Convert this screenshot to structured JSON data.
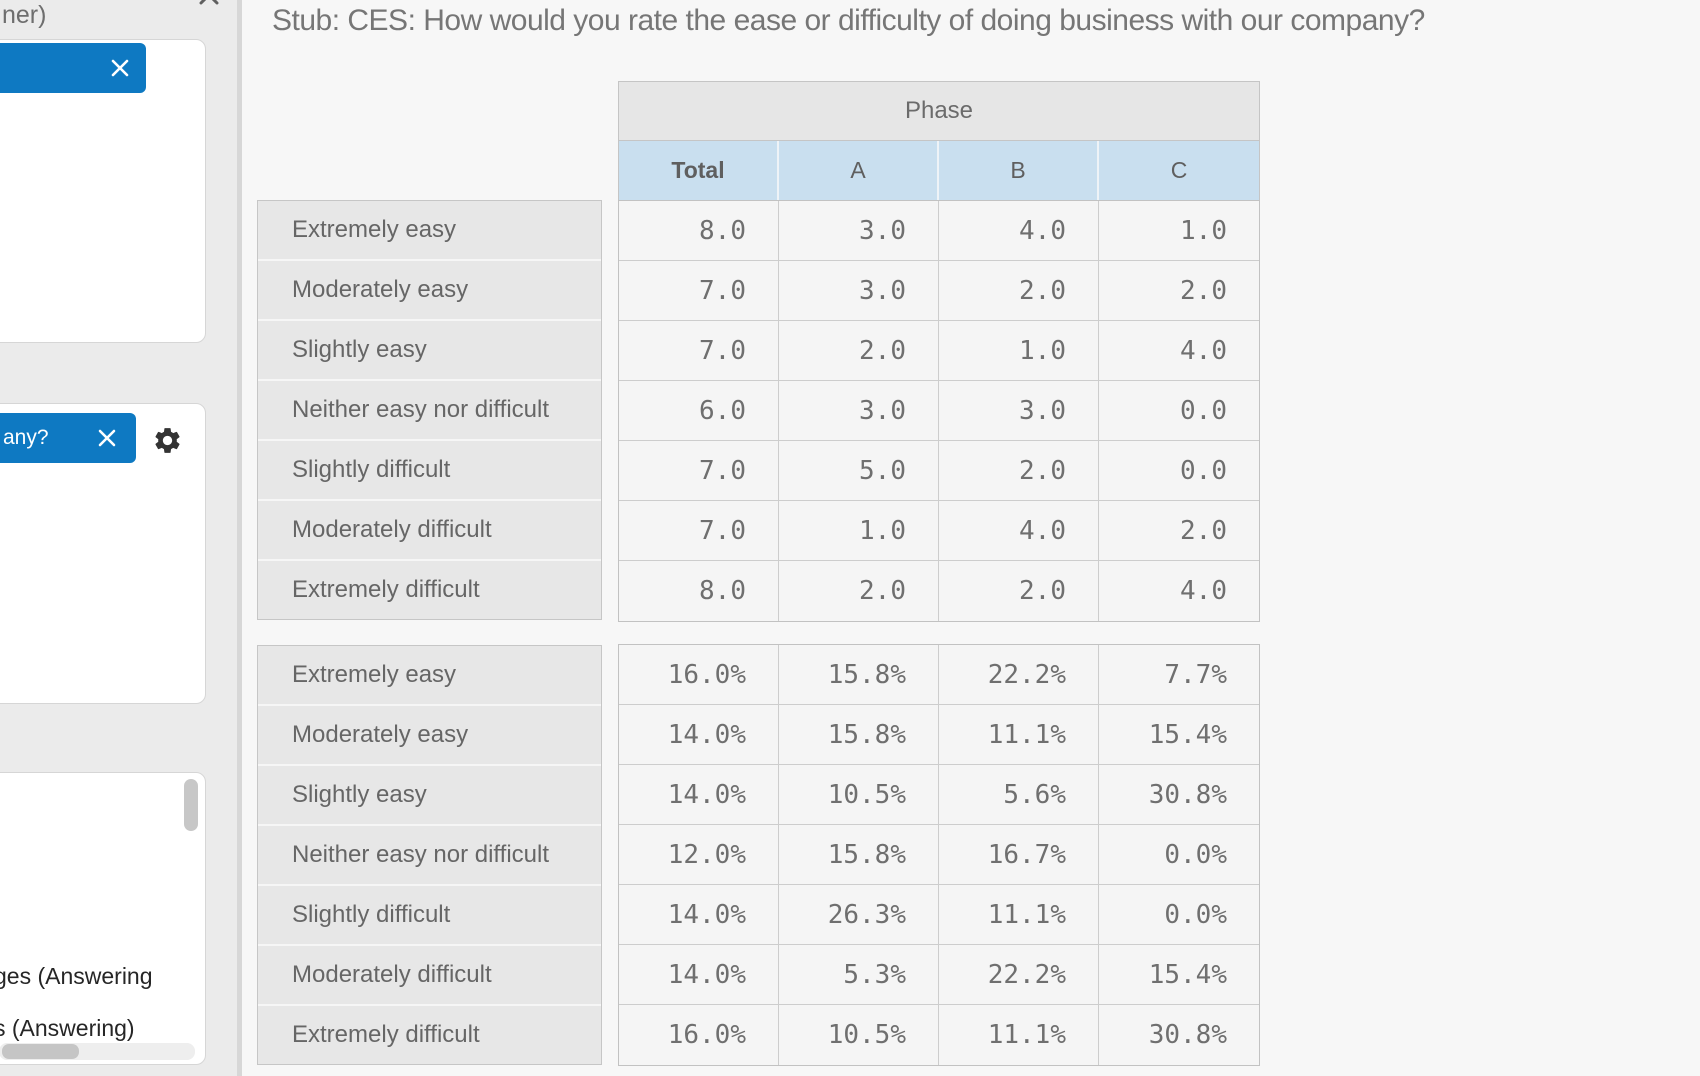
{
  "main": {
    "title": "Stub: CES: How would you rate the ease or difficulty of doing business with our company?"
  },
  "sidebar": {
    "truncated_header_label": "ner)",
    "card2_chip_label": "any?",
    "card3_visible_items": [
      "ges (Answering",
      "s (Answering)"
    ]
  },
  "icons": {
    "close": "x-close",
    "gear": "settings-gear"
  },
  "colors": {
    "accent_blue": "#0e79c2",
    "subheader_blue": "#c9dfef",
    "header_gray": "#e6e6e6",
    "sidebar_gray": "#ebebeb",
    "main_bg": "#f7f7f7",
    "text_gray": "#6b6b6b"
  },
  "chart_data": {
    "type": "table",
    "title": "Stub: CES: How would you rate the ease or difficulty of doing business with our company?",
    "column_group_label": "Phase",
    "columns": [
      "Total",
      "A",
      "B",
      "C"
    ],
    "rows": [
      "Extremely easy",
      "Moderately easy",
      "Slightly easy",
      "Neither easy nor difficult",
      "Slightly difficult",
      "Moderately difficult",
      "Extremely difficult"
    ],
    "counts": [
      [
        "8.0",
        "3.0",
        "4.0",
        "1.0"
      ],
      [
        "7.0",
        "3.0",
        "2.0",
        "2.0"
      ],
      [
        "7.0",
        "2.0",
        "1.0",
        "4.0"
      ],
      [
        "6.0",
        "3.0",
        "3.0",
        "0.0"
      ],
      [
        "7.0",
        "5.0",
        "2.0",
        "0.0"
      ],
      [
        "7.0",
        "1.0",
        "4.0",
        "2.0"
      ],
      [
        "8.0",
        "2.0",
        "2.0",
        "4.0"
      ]
    ],
    "percentages": [
      [
        "16.0%",
        "15.8%",
        "22.2%",
        "7.7%"
      ],
      [
        "14.0%",
        "15.8%",
        "11.1%",
        "15.4%"
      ],
      [
        "14.0%",
        "10.5%",
        "5.6%",
        "30.8%"
      ],
      [
        "12.0%",
        "15.8%",
        "16.7%",
        "0.0%"
      ],
      [
        "14.0%",
        "26.3%",
        "11.1%",
        "0.0%"
      ],
      [
        "14.0%",
        "5.3%",
        "22.2%",
        "15.4%"
      ],
      [
        "16.0%",
        "10.5%",
        "11.1%",
        "30.8%"
      ]
    ]
  }
}
